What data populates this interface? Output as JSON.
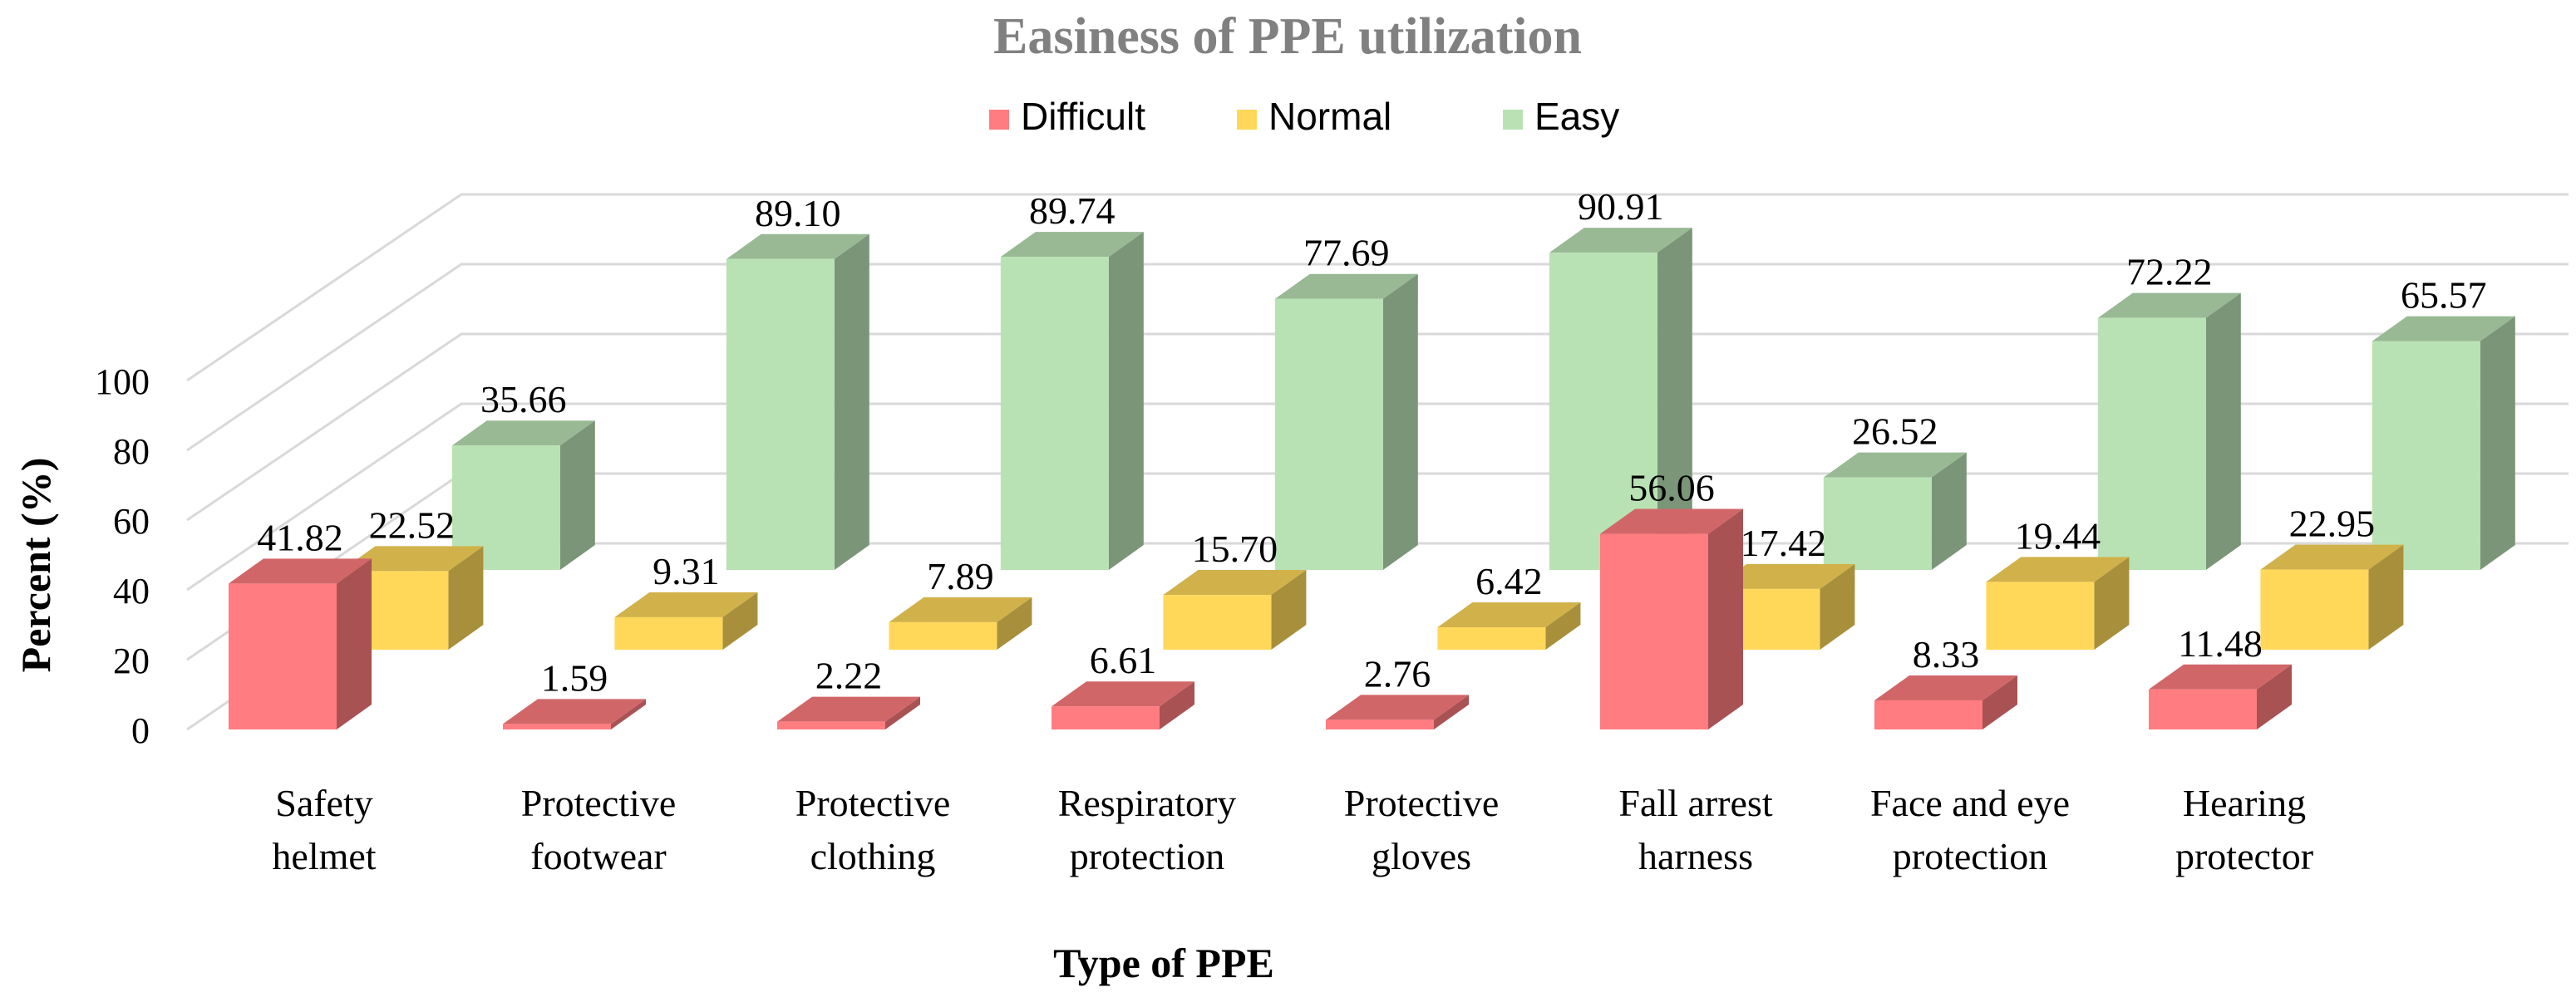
{
  "chart_data": {
    "type": "bar",
    "title": "Easiness of PPE utilization",
    "xlabel": "Type of PPE",
    "ylabel": "Percent (%)",
    "ylim": [
      0,
      100
    ],
    "yticks": [
      "0",
      "20",
      "40",
      "60",
      "80",
      "100"
    ],
    "grid": true,
    "legend_position": "top",
    "categories": [
      [
        "Safety",
        "helmet"
      ],
      [
        "Protective",
        "footwear"
      ],
      [
        "Protective",
        "clothing"
      ],
      [
        "Respiratory",
        "protection"
      ],
      [
        "Protective",
        "gloves"
      ],
      [
        "Fall arrest",
        "harness"
      ],
      [
        "Face and eye",
        "protection"
      ],
      [
        "Hearing",
        "protector"
      ]
    ],
    "series": [
      {
        "name": "Difficult",
        "color": "#ff7c80",
        "values": [
          41.82,
          1.59,
          2.22,
          6.61,
          2.76,
          56.06,
          8.33,
          11.48
        ],
        "labels": [
          "41.82",
          "1.59",
          "2.22",
          "6.61",
          "2.76",
          "56.06",
          "8.33",
          "11.48"
        ]
      },
      {
        "name": "Normal",
        "color": "#ffd85a",
        "values": [
          22.52,
          9.31,
          7.89,
          15.7,
          6.42,
          17.42,
          19.44,
          22.95
        ],
        "labels": [
          "22.52",
          "9.31",
          "7.89",
          "15.70",
          "6.42",
          "17.42",
          "19.44",
          "22.95"
        ]
      },
      {
        "name": "Easy",
        "color": "#b9e2b4",
        "values": [
          35.66,
          89.1,
          89.74,
          77.69,
          90.91,
          26.52,
          72.22,
          65.57
        ],
        "labels": [
          "35.66",
          "89.10",
          "89.74",
          "77.69",
          "90.91",
          "26.52",
          "72.22",
          "65.57"
        ]
      }
    ]
  }
}
